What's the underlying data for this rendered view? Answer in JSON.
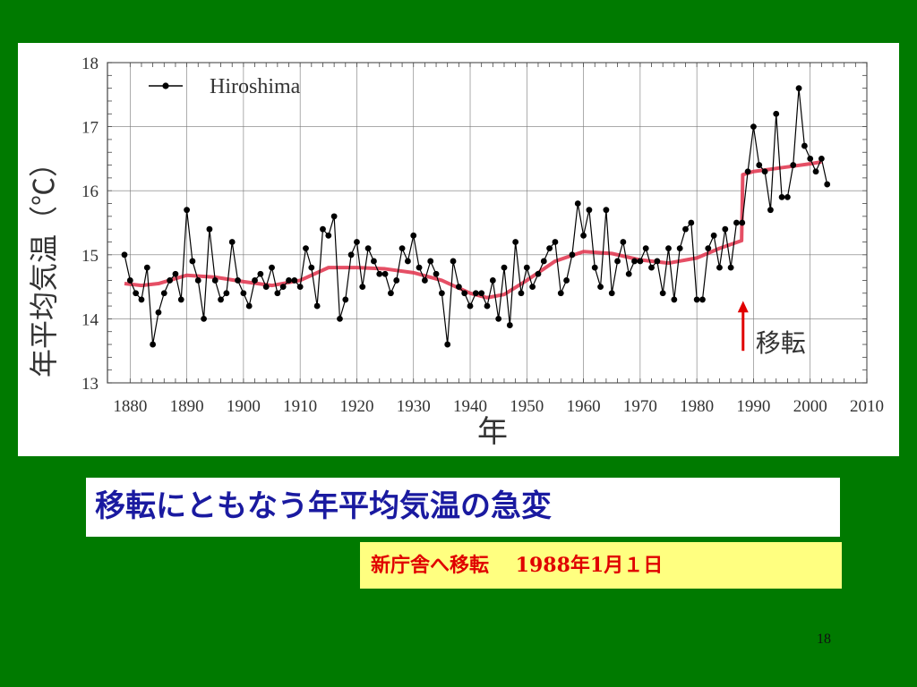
{
  "slide": {
    "caption": "移転にともなう年平均気温の急変",
    "note": "新庁舎へ移転　 1988年1月１日",
    "page_number": "18"
  },
  "colors": {
    "background": "#007a00",
    "caption_text": "#1a1aa0",
    "note_background": "#ffff80",
    "note_text": "#e00000",
    "series": "#000000",
    "trend": "#e0304a",
    "arrow": "#e00000"
  },
  "chart_data": {
    "type": "line",
    "title": "",
    "xlabel": "年",
    "ylabel": "年平均気温（℃）",
    "xlim": [
      1876,
      2010
    ],
    "ylim": [
      13,
      18
    ],
    "x_ticks": [
      1880,
      1890,
      1900,
      1910,
      1920,
      1930,
      1940,
      1950,
      1960,
      1970,
      1980,
      1990,
      2000,
      2010
    ],
    "y_ticks": [
      13,
      14,
      15,
      16,
      17,
      18
    ],
    "grid": true,
    "legend_position": "top-left",
    "annotation": {
      "label": "移転",
      "year": 1988
    },
    "series": [
      {
        "name": "Hiroshima",
        "x": [
          1879,
          1880,
          1881,
          1882,
          1883,
          1884,
          1885,
          1886,
          1887,
          1888,
          1889,
          1890,
          1891,
          1892,
          1893,
          1894,
          1895,
          1896,
          1897,
          1898,
          1899,
          1900,
          1901,
          1902,
          1903,
          1904,
          1905,
          1906,
          1907,
          1908,
          1909,
          1910,
          1911,
          1912,
          1913,
          1914,
          1915,
          1916,
          1917,
          1918,
          1919,
          1920,
          1921,
          1922,
          1923,
          1924,
          1925,
          1926,
          1927,
          1928,
          1929,
          1930,
          1931,
          1932,
          1933,
          1934,
          1935,
          1936,
          1937,
          1938,
          1939,
          1940,
          1941,
          1942,
          1943,
          1944,
          1945,
          1946,
          1947,
          1948,
          1949,
          1950,
          1951,
          1952,
          1953,
          1954,
          1955,
          1956,
          1957,
          1958,
          1959,
          1960,
          1961,
          1962,
          1963,
          1964,
          1965,
          1966,
          1967,
          1968,
          1969,
          1970,
          1971,
          1972,
          1973,
          1974,
          1975,
          1976,
          1977,
          1978,
          1979,
          1980,
          1981,
          1982,
          1983,
          1984,
          1985,
          1986,
          1987,
          1988,
          1989,
          1990,
          1991,
          1992,
          1993,
          1994,
          1995,
          1996,
          1997,
          1998,
          1999,
          2000,
          2001,
          2002,
          2003
        ],
        "y": [
          15.0,
          14.6,
          14.4,
          14.3,
          14.8,
          13.6,
          14.1,
          14.4,
          14.6,
          14.7,
          14.3,
          15.7,
          14.9,
          14.6,
          14.0,
          15.4,
          14.6,
          14.3,
          14.4,
          15.2,
          14.6,
          14.4,
          14.2,
          14.6,
          14.7,
          14.5,
          14.8,
          14.4,
          14.5,
          14.6,
          14.6,
          14.5,
          15.1,
          14.8,
          14.2,
          15.4,
          15.3,
          15.6,
          14.0,
          14.3,
          15.0,
          15.2,
          14.5,
          15.1,
          14.9,
          14.7,
          14.7,
          14.4,
          14.6,
          15.1,
          14.9,
          15.3,
          14.8,
          14.6,
          14.9,
          14.7,
          14.4,
          13.6,
          14.9,
          14.5,
          14.4,
          14.2,
          14.4,
          14.4,
          14.2,
          14.6,
          14.0,
          14.8,
          13.9,
          15.2,
          14.4,
          14.8,
          14.5,
          14.7,
          14.9,
          15.1,
          15.2,
          14.4,
          14.6,
          15.0,
          15.8,
          15.3,
          15.7,
          14.8,
          14.5,
          15.7,
          14.4,
          14.9,
          15.2,
          14.7,
          14.9,
          14.9,
          15.1,
          14.8,
          14.9,
          14.4,
          15.1,
          14.3,
          15.1,
          15.4,
          15.5,
          14.3,
          14.3,
          15.1,
          15.3,
          14.8,
          15.4,
          14.8,
          15.5,
          15.5,
          16.3,
          17.0,
          16.4,
          16.3,
          15.7,
          17.2,
          15.9,
          15.9,
          16.4,
          17.6,
          16.7,
          16.5,
          16.3,
          16.5,
          16.1
        ]
      },
      {
        "name": "",
        "x": [
          1879,
          1882,
          1885,
          1890,
          1895,
          1900,
          1905,
          1910,
          1915,
          1920,
          1925,
          1930,
          1935,
          1940,
          1943,
          1946,
          1950,
          1955,
          1960,
          1965,
          1970,
          1975,
          1980,
          1984,
          1987.9,
          1988.1,
          1990,
          1995,
          2000,
          2002
        ],
        "y": [
          14.55,
          14.52,
          14.55,
          14.68,
          14.65,
          14.58,
          14.52,
          14.6,
          14.8,
          14.8,
          14.78,
          14.72,
          14.6,
          14.4,
          14.33,
          14.38,
          14.6,
          14.9,
          15.05,
          15.02,
          14.92,
          14.87,
          14.95,
          15.1,
          15.22,
          16.25,
          16.3,
          16.36,
          16.42,
          16.45
        ]
      }
    ]
  }
}
